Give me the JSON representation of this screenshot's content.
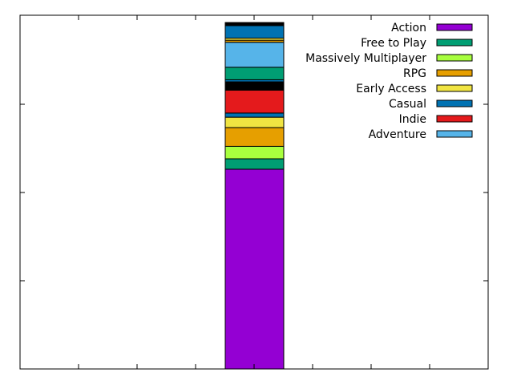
{
  "chart_data": {
    "type": "bar",
    "stacked": true,
    "categories": [
      ""
    ],
    "ylim": [
      0,
      1.7
    ],
    "grid": false,
    "legend_position": "top-right",
    "series": [
      {
        "name": "Action",
        "color": "#9400D3",
        "values": [
          0.96
        ]
      },
      {
        "name": "Free to Play",
        "color": "#009E73",
        "values": [
          0.05
        ]
      },
      {
        "name": "Massively Multiplayer",
        "color": "#A8FF3E",
        "values": [
          0.06
        ]
      },
      {
        "name": "RPG",
        "color": "#E69F00",
        "values": [
          0.09
        ]
      },
      {
        "name": "Early Access",
        "color": "#F0E442",
        "values": [
          0.05
        ]
      },
      {
        "name": "Casual",
        "color": "#0072B2",
        "values": [
          0.02
        ]
      },
      {
        "name": "Indie",
        "color": "#E41A1C",
        "values": [
          0.11
        ]
      },
      {
        "name": "",
        "color": "#000000",
        "values": [
          0.04
        ]
      },
      {
        "name": "",
        "color": "#0072B2",
        "values": [
          0.01
        ]
      },
      {
        "name": "",
        "color": "#009E73",
        "values": [
          0.06
        ]
      },
      {
        "name": "Adventure",
        "color": "#56B4E9",
        "values": [
          0.12
        ]
      },
      {
        "name": "",
        "color": "#E69F00",
        "values": [
          0.01
        ]
      },
      {
        "name": "",
        "color": "#F0E442",
        "values": [
          0.01
        ]
      },
      {
        "name": "",
        "color": "#0072B2",
        "values": [
          0.06
        ]
      },
      {
        "name": "",
        "color": "#000000",
        "values": [
          0.015
        ]
      }
    ]
  }
}
